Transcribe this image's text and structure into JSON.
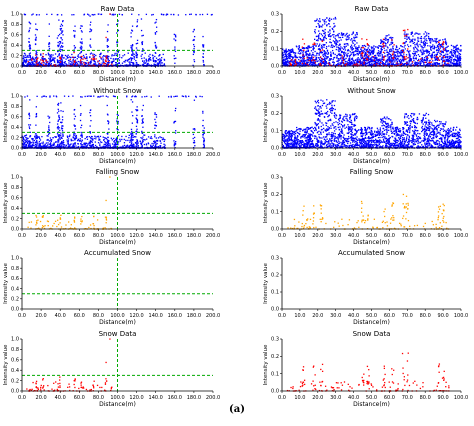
{
  "caption": "(a)",
  "colors": {
    "raw": "#0000ff",
    "raw_snow": "#ff0000",
    "falling": "#ffa500",
    "snow": "#ff0000",
    "threshold": "#00aa00",
    "axis": "#000000"
  },
  "chart_data": [
    {
      "id": "L1",
      "type": "scatter",
      "title": "Raw Data",
      "xlabel": "Distance(m)",
      "ylabel": "Intensity value",
      "xlim": [
        0,
        200
      ],
      "ylim": [
        0,
        1.0
      ],
      "xticks": [
        "0.0",
        "20.0",
        "40.0",
        "60.0",
        "80.0",
        "100.0",
        "120.0",
        "140.0",
        "160.0",
        "180.0",
        "200.0"
      ],
      "yticks": [
        "0.0",
        "0.2",
        "0.4",
        "0.6",
        "0.8",
        "1.0"
      ],
      "threshold_y": 0.3,
      "threshold_x": 100,
      "series": [
        {
          "role": "clutter",
          "color": "blue"
        },
        {
          "role": "snow",
          "color": "red"
        }
      ]
    },
    {
      "id": "L2",
      "type": "scatter",
      "title": "Without Snow",
      "xlabel": "Distance(m)",
      "ylabel": "Intensity value",
      "xlim": [
        0,
        200
      ],
      "ylim": [
        0,
        1.0
      ],
      "xticks": [
        "0.0",
        "20.0",
        "40.0",
        "60.0",
        "80.0",
        "100.0",
        "120.0",
        "140.0",
        "160.0",
        "180.0",
        "200.0"
      ],
      "yticks": [
        "0.0",
        "0.2",
        "0.4",
        "0.6",
        "0.8",
        "1.0"
      ],
      "threshold_y": 0.3,
      "threshold_x": 100,
      "series": [
        {
          "role": "clutter",
          "color": "blue"
        }
      ]
    },
    {
      "id": "L3",
      "type": "scatter",
      "title": "Falling Snow",
      "xlabel": "Distance(m)",
      "ylabel": "Intensity value",
      "xlim": [
        0,
        200
      ],
      "ylim": [
        0,
        1.0
      ],
      "xticks": [
        "0.0",
        "20.0",
        "40.0",
        "60.0",
        "80.0",
        "100.0",
        "120.0",
        "140.0",
        "160.0",
        "180.0",
        "200.0"
      ],
      "yticks": [
        "0.0",
        "0.2",
        "0.4",
        "0.6",
        "0.8",
        "1.0"
      ],
      "threshold_y": 0.3,
      "threshold_x": 100,
      "series": [
        {
          "role": "snow",
          "color": "orange"
        }
      ]
    },
    {
      "id": "L4",
      "type": "scatter",
      "title": "Accumulated Snow",
      "xlabel": "Distance(m)",
      "ylabel": "Intensity value",
      "xlim": [
        0,
        200
      ],
      "ylim": [
        0,
        1.0
      ],
      "xticks": [
        "0.0",
        "20.0",
        "40.0",
        "60.0",
        "80.0",
        "100.0",
        "120.0",
        "140.0",
        "160.0",
        "180.0",
        "200.0"
      ],
      "yticks": [
        "0.0",
        "0.2",
        "0.4",
        "0.6",
        "0.8",
        "1.0"
      ],
      "threshold_y": 0.3,
      "threshold_x": 100,
      "series": []
    },
    {
      "id": "L5",
      "type": "scatter",
      "title": "Snow Data",
      "xlabel": "Distance(m)",
      "ylabel": "Intensity value",
      "xlim": [
        0,
        200
      ],
      "ylim": [
        0,
        1.0
      ],
      "xticks": [
        "0.0",
        "20.0",
        "40.0",
        "60.0",
        "80.0",
        "100.0",
        "120.0",
        "140.0",
        "160.0",
        "180.0",
        "200.0"
      ],
      "yticks": [
        "0.0",
        "0.2",
        "0.4",
        "0.6",
        "0.8",
        "1.0"
      ],
      "threshold_y": 0.3,
      "threshold_x": 100,
      "series": [
        {
          "role": "snow",
          "color": "red"
        }
      ]
    },
    {
      "id": "R1",
      "type": "scatter",
      "title": "Raw Data",
      "xlabel": "Distance(m)",
      "ylabel": "Intensity value",
      "xlim": [
        0,
        100
      ],
      "ylim": [
        0,
        0.3
      ],
      "xticks": [
        "0.0",
        "10.0",
        "20.0",
        "30.0",
        "40.0",
        "50.0",
        "60.0",
        "70.0",
        "80.0",
        "90.0",
        "100.0"
      ],
      "yticks": [
        "0.0",
        "0.1",
        "0.2",
        "0.3"
      ],
      "series": [
        {
          "role": "clutter",
          "color": "blue"
        },
        {
          "role": "snow",
          "color": "red"
        }
      ]
    },
    {
      "id": "R2",
      "type": "scatter",
      "title": "Without Snow",
      "xlabel": "Distance(m)",
      "ylabel": "Intensity value",
      "xlim": [
        0,
        100
      ],
      "ylim": [
        0,
        0.3
      ],
      "xticks": [
        "0.0",
        "10.0",
        "20.0",
        "30.0",
        "40.0",
        "50.0",
        "60.0",
        "70.0",
        "80.0",
        "90.0",
        "100.0"
      ],
      "yticks": [
        "0.0",
        "0.1",
        "0.2",
        "0.3"
      ],
      "series": [
        {
          "role": "clutter",
          "color": "blue"
        }
      ]
    },
    {
      "id": "R3",
      "type": "scatter",
      "title": "Falling Snow",
      "xlabel": "Distance(m)",
      "ylabel": "Intensity value",
      "xlim": [
        0,
        100
      ],
      "ylim": [
        0,
        0.3
      ],
      "xticks": [
        "0.0",
        "10.0",
        "20.0",
        "30.0",
        "40.0",
        "50.0",
        "60.0",
        "70.0",
        "80.0",
        "90.0",
        "100.0"
      ],
      "yticks": [
        "0.0",
        "0.1",
        "0.2",
        "0.3"
      ],
      "series": [
        {
          "role": "snow",
          "color": "orange"
        }
      ]
    },
    {
      "id": "R4",
      "type": "scatter",
      "title": "Accumulated Snow",
      "xlabel": "Distance(m)",
      "ylabel": "Intensity value",
      "xlim": [
        0,
        100
      ],
      "ylim": [
        0,
        0.3
      ],
      "xticks": [
        "0.0",
        "10.0",
        "20.0",
        "30.0",
        "40.0",
        "50.0",
        "60.0",
        "70.0",
        "80.0",
        "90.0",
        "100.0"
      ],
      "yticks": [
        "0.0",
        "0.1",
        "0.2",
        "0.3"
      ],
      "series": []
    },
    {
      "id": "R5",
      "type": "scatter",
      "title": "Snow Data",
      "xlabel": "Distance(m)",
      "ylabel": "Intensity value",
      "xlim": [
        0,
        100
      ],
      "ylim": [
        0,
        0.3
      ],
      "xticks": [
        "0.0",
        "10.0",
        "20.0",
        "30.0",
        "40.0",
        "50.0",
        "60.0",
        "70.0",
        "80.0",
        "90.0",
        "100.0"
      ],
      "yticks": [
        "0.0",
        "0.1",
        "0.2",
        "0.3"
      ],
      "series": [
        {
          "role": "snow",
          "color": "red"
        }
      ]
    }
  ]
}
